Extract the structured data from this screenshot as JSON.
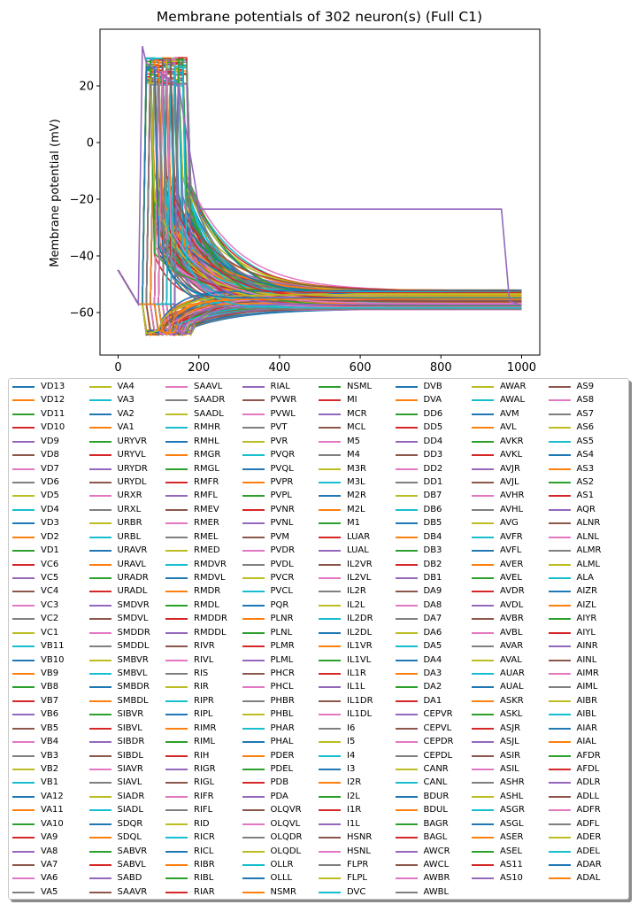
{
  "chart_data": {
    "type": "line",
    "title": "Membrane potentials of 302 neuron(s) (Full C1)",
    "xlabel": "",
    "ylabel": "Membrane potential (mV)",
    "xlim": [
      -45,
      1045
    ],
    "ylim": [
      -75,
      40
    ],
    "xticks": [
      0,
      200,
      400,
      600,
      800,
      1000
    ],
    "yticks": [
      -60,
      -40,
      -20,
      0,
      20
    ],
    "legend_position": "below plot, 8 columns",
    "grid": false,
    "colors": [
      "#1f77b4",
      "#ff7f0e",
      "#2ca02c",
      "#d62728",
      "#9467bd",
      "#8c564b",
      "#e377c2",
      "#7f7f7f",
      "#bcbd22",
      "#17becf"
    ],
    "legend_columns": [
      [
        "VD13",
        "VD12",
        "VD11",
        "VD10",
        "VD9",
        "VD8",
        "VD7",
        "VD6",
        "VD5",
        "VD4",
        "VD3",
        "VD2",
        "VD1",
        "VC6",
        "VC5",
        "VC4",
        "VC3",
        "VC2",
        "VC1",
        "VB11",
        "VB10",
        "VB9",
        "VB8",
        "VB7",
        "VB6",
        "VB5",
        "VB4",
        "VB3",
        "VB2",
        "VB1",
        "VA12",
        "VA11",
        "VA10",
        "VA9",
        "VA8",
        "VA7",
        "VA6",
        "VA5"
      ],
      [
        "VA4",
        "VA3",
        "VA2",
        "VA1",
        "URYVR",
        "URYVL",
        "URYDR",
        "URYDL",
        "URXR",
        "URXL",
        "URBR",
        "URBL",
        "URAVR",
        "URAVL",
        "URADR",
        "URADL",
        "SMDVR",
        "SMDVL",
        "SMDDR",
        "SMDDL",
        "SMBVR",
        "SMBVL",
        "SMBDR",
        "SMBDL",
        "SIBVR",
        "SIBVL",
        "SIBDR",
        "SIBDL",
        "SIAVR",
        "SIAVL",
        "SIADR",
        "SIADL",
        "SDQR",
        "SDQL",
        "SABVR",
        "SABVL",
        "SABD",
        "SAAVR"
      ],
      [
        "SAAVL",
        "SAADR",
        "SAADL",
        "RMHR",
        "RMHL",
        "RMGR",
        "RMGL",
        "RMFR",
        "RMFL",
        "RMEV",
        "RMER",
        "RMEL",
        "RMED",
        "RMDVR",
        "RMDVL",
        "RMDR",
        "RMDL",
        "RMDDR",
        "RMDDL",
        "RIVR",
        "RIVL",
        "RIS",
        "RIR",
        "RIPR",
        "RIPL",
        "RIMR",
        "RIML",
        "RIH",
        "RIGR",
        "RIGL",
        "RIFR",
        "RIFL",
        "RID",
        "RICR",
        "RICL",
        "RIBR",
        "RIBL",
        "RIAR"
      ],
      [
        "RIAL",
        "PVWR",
        "PVWL",
        "PVT",
        "PVR",
        "PVQR",
        "PVQL",
        "PVPR",
        "PVPL",
        "PVNR",
        "PVNL",
        "PVM",
        "PVDR",
        "PVDL",
        "PVCR",
        "PVCL",
        "PQR",
        "PLNR",
        "PLNL",
        "PLMR",
        "PLML",
        "PHCR",
        "PHCL",
        "PHBR",
        "PHBL",
        "PHAR",
        "PHAL",
        "PDER",
        "PDEL",
        "PDB",
        "PDA",
        "OLQVR",
        "OLQVL",
        "OLQDR",
        "OLQDL",
        "OLLR",
        "OLLL",
        "NSMR"
      ],
      [
        "NSML",
        "MI",
        "MCR",
        "MCL",
        "M5",
        "M4",
        "M3R",
        "M3L",
        "M2R",
        "M2L",
        "M1",
        "LUAR",
        "LUAL",
        "IL2VR",
        "IL2VL",
        "IL2R",
        "IL2L",
        "IL2DR",
        "IL2DL",
        "IL1VR",
        "IL1VL",
        "IL1R",
        "IL1L",
        "IL1DR",
        "IL1DL",
        "I6",
        "I5",
        "I4",
        "I3",
        "I2R",
        "I2L",
        "I1R",
        "I1L",
        "HSNR",
        "HSNL",
        "FLPR",
        "FLPL",
        "DVC"
      ],
      [
        "DVB",
        "DVA",
        "DD6",
        "DD5",
        "DD4",
        "DD3",
        "DD2",
        "DD1",
        "DB7",
        "DB6",
        "DB5",
        "DB4",
        "DB3",
        "DB2",
        "DB1",
        "DA9",
        "DA8",
        "DA7",
        "DA6",
        "DA5",
        "DA4",
        "DA3",
        "DA2",
        "DA1",
        "CEPVR",
        "CEPVL",
        "CEPDR",
        "CEPDL",
        "CANR",
        "CANL",
        "BDUR",
        "BDUL",
        "BAGR",
        "BAGL",
        "AWCR",
        "AWCL",
        "AWBR",
        "AWBL"
      ],
      [
        "AWAR",
        "AWAL",
        "AVM",
        "AVL",
        "AVKR",
        "AVKL",
        "AVJR",
        "AVJL",
        "AVHR",
        "AVHL",
        "AVG",
        "AVFR",
        "AVFL",
        "AVER",
        "AVEL",
        "AVDR",
        "AVDL",
        "AVBR",
        "AVBL",
        "AVAR",
        "AVAL",
        "AUAR",
        "AUAL",
        "ASKR",
        "ASKL",
        "ASJR",
        "ASJL",
        "ASIR",
        "ASIL",
        "ASHR",
        "ASHL",
        "ASGR",
        "ASGL",
        "ASER",
        "ASEL",
        "AS11",
        "AS10"
      ],
      [
        "AS9",
        "AS8",
        "AS7",
        "AS6",
        "AS5",
        "AS4",
        "AS3",
        "AS2",
        "AS1",
        "AQR",
        "ALNR",
        "ALNL",
        "ALMR",
        "ALML",
        "ALA",
        "AIZR",
        "AIZL",
        "AIYR",
        "AIYL",
        "AINR",
        "AINL",
        "AIMR",
        "AIML",
        "AIBR",
        "AIBL",
        "AIAR",
        "AIAL",
        "AFDR",
        "AFDL",
        "ADLR",
        "ADLL",
        "ADFR",
        "ADFL",
        "ADER",
        "ADEL",
        "ADAR",
        "ADAL"
      ]
    ]
  }
}
